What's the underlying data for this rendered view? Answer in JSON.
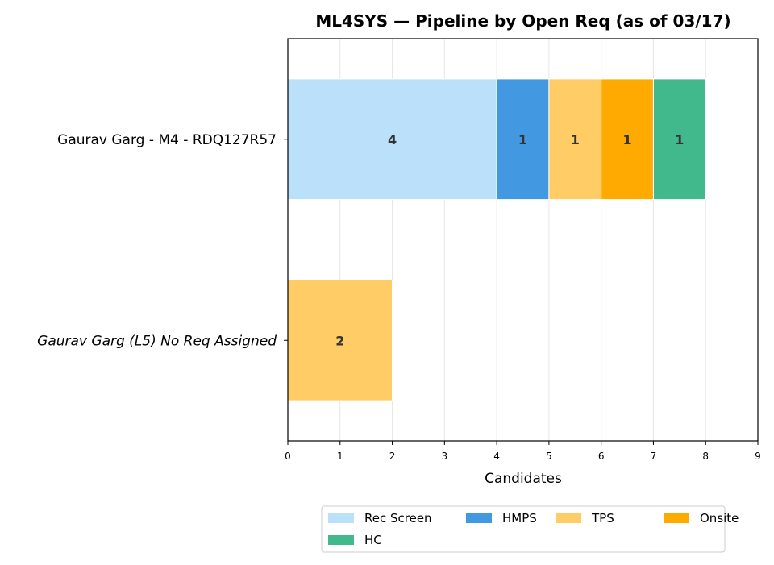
{
  "chart_data": {
    "type": "bar",
    "orientation": "horizontal",
    "stacked": true,
    "title": "ML4SYS — Pipeline by Open Req (as of 03/17)",
    "xlabel": "Candidates",
    "ylabel": "",
    "xlim": [
      0,
      9
    ],
    "xticks": [
      "0",
      "1",
      "2",
      "3",
      "4",
      "5",
      "6",
      "7",
      "8",
      "9"
    ],
    "grid": "vertical",
    "categories": [
      {
        "label": "Gaurav Garg - M4 - RDQ127R57",
        "style": "normal",
        "color": "#000000"
      },
      {
        "label": "Gaurav Garg (L5) No Req Assigned",
        "style": "italic",
        "color": "#cc0000"
      }
    ],
    "series": [
      {
        "name": "Rec Screen",
        "color": "#bbe1fa",
        "values": [
          4,
          0
        ]
      },
      {
        "name": "HMPS",
        "color": "#4299e1",
        "values": [
          1,
          0
        ]
      },
      {
        "name": "TPS",
        "color": "#ffcc66",
        "values": [
          1,
          2
        ]
      },
      {
        "name": "Onsite",
        "color": "#ffaa00",
        "values": [
          1,
          0
        ]
      },
      {
        "name": "HC",
        "color": "#41b98d",
        "values": [
          1,
          0
        ]
      }
    ],
    "legend": {
      "position": "bottom-center",
      "columns": 4
    }
  }
}
